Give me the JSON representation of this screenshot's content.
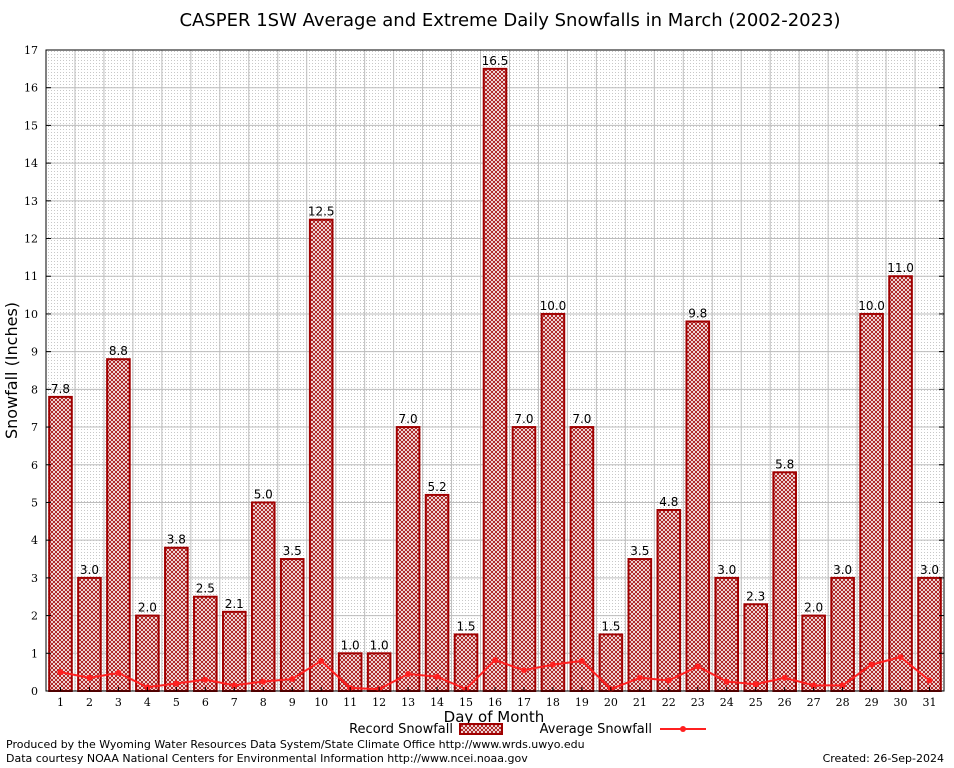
{
  "chart_data": {
    "type": "bar",
    "title": "CASPER 1SW Average and Extreme Daily Snowfalls in March (2002-2023)",
    "xlabel": "Day of Month",
    "ylabel": "Snowfall (Inches)",
    "ylim": [
      0,
      17
    ],
    "yticks": [
      "0",
      "1",
      "2",
      "3",
      "4",
      "5",
      "6",
      "7",
      "8",
      "9",
      "10",
      "11",
      "12",
      "13",
      "14",
      "15",
      "16",
      "17"
    ],
    "categories": [
      "1",
      "2",
      "3",
      "4",
      "5",
      "6",
      "7",
      "8",
      "9",
      "10",
      "11",
      "12",
      "13",
      "14",
      "15",
      "16",
      "17",
      "18",
      "19",
      "20",
      "21",
      "22",
      "23",
      "24",
      "25",
      "26",
      "27",
      "28",
      "29",
      "30",
      "31"
    ],
    "series": [
      {
        "name": "Record Snowfall",
        "type": "bar",
        "color": "#a00000",
        "values": [
          7.8,
          3.0,
          8.8,
          2.0,
          3.8,
          2.5,
          2.1,
          5.0,
          3.5,
          12.5,
          1.0,
          1.0,
          7.0,
          5.2,
          1.5,
          16.5,
          7.0,
          10.0,
          7.0,
          1.5,
          3.5,
          4.8,
          9.8,
          3.0,
          2.3,
          5.8,
          2.0,
          3.0,
          10.0,
          11.0,
          3.0
        ],
        "labels": [
          "7.8",
          "3.0",
          "8.8",
          "2.0",
          "3.8",
          "2.5",
          "2.1",
          "5.0",
          "3.5",
          "12.5",
          "1.0",
          "1.0",
          "7.0",
          "5.2",
          "1.5",
          "16.5",
          "7.0",
          "10.0",
          "7.0",
          "1.5",
          "3.5",
          "4.8",
          "9.8",
          "3.0",
          "2.3",
          "5.8",
          "2.0",
          "3.0",
          "10.0",
          "11.0",
          "3.0"
        ]
      },
      {
        "name": "Average Snowfall",
        "type": "line",
        "color": "#ff2020",
        "values": [
          0.5,
          0.35,
          0.48,
          0.1,
          0.2,
          0.3,
          0.15,
          0.25,
          0.32,
          0.8,
          0.08,
          0.05,
          0.45,
          0.38,
          0.05,
          0.82,
          0.55,
          0.7,
          0.8,
          0.05,
          0.35,
          0.28,
          0.65,
          0.25,
          0.18,
          0.35,
          0.15,
          0.15,
          0.7,
          0.9,
          0.28
        ]
      }
    ],
    "grid": true,
    "legend": "bottom-center"
  },
  "footer": {
    "produced_by": "Produced by the Wyoming Water Resources Data System/State Climate Office http://www.wrds.uwyo.edu",
    "data_courtesy": "Data courtesy NOAA National Centers for Environmental Information http://www.ncei.noaa.gov",
    "created": "Created:  26-Sep-2024"
  }
}
